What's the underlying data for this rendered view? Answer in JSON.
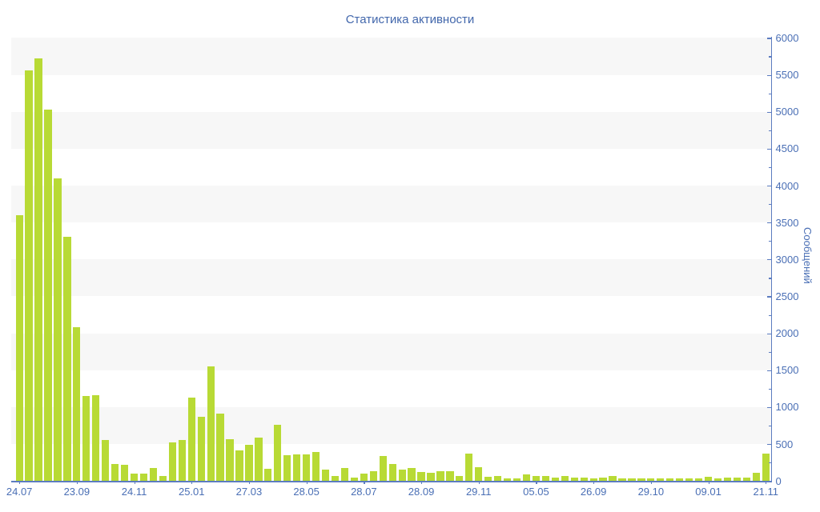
{
  "title": "Статистика активности",
  "chart_data": {
    "type": "bar",
    "title": "Статистика активности",
    "xlabel": "",
    "ylabel": "Сообщений",
    "ylim": [
      0,
      6000
    ],
    "y_tick_step": 500,
    "y_minor_tick_step": 250,
    "y_tick_labels": [
      "0",
      "500",
      "1000",
      "1500",
      "2000",
      "2500",
      "3000",
      "3500",
      "4000",
      "4500",
      "5000",
      "5500",
      "6000"
    ],
    "grid": "alternating horizontal bands every 500 units",
    "legend_position": "none",
    "x_tick_labels": [
      "24.07",
      "23.09",
      "24.11",
      "25.01",
      "27.03",
      "28.05",
      "28.07",
      "28.09",
      "29.11",
      "05.05",
      "26.09",
      "29.10",
      "09.01",
      "21.11"
    ],
    "bars_per_tick": 6,
    "values": [
      3600,
      5560,
      5720,
      5030,
      4100,
      3310,
      2080,
      1150,
      1160,
      560,
      235,
      215,
      95,
      95,
      180,
      65,
      520,
      560,
      1130,
      870,
      1550,
      910,
      570,
      415,
      490,
      590,
      170,
      760,
      350,
      365,
      360,
      390,
      155,
      65,
      175,
      50,
      100,
      130,
      335,
      230,
      155,
      175,
      120,
      110,
      130,
      130,
      70,
      375,
      185,
      55,
      70,
      40,
      30,
      90,
      70,
      70,
      50,
      65,
      50,
      45,
      30,
      50,
      65,
      35,
      35,
      30,
      40,
      30,
      30,
      35,
      30,
      35,
      55,
      35,
      45,
      50,
      45,
      110,
      370
    ],
    "colors": {
      "bar": "#b8da35",
      "band_gray": "#f7f7f7",
      "band_white": "#ffffff",
      "axis": "#5c7cc0",
      "tick_text": "#4a6fb5",
      "title_text": "#4267ac"
    }
  }
}
